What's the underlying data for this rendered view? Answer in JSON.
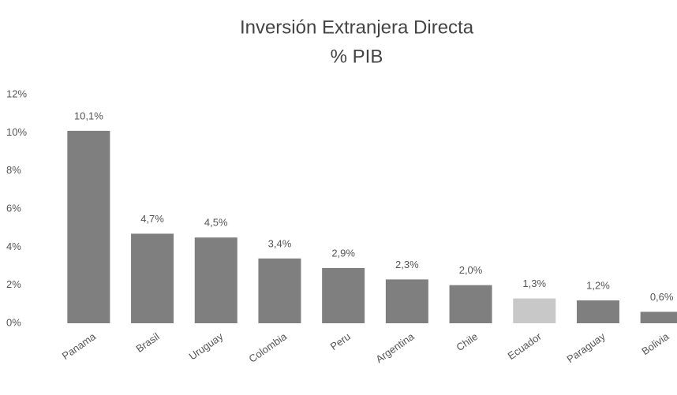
{
  "chart_data": {
    "type": "bar",
    "title": "Inversión Extranjera Directa",
    "subtitle": "% PIB",
    "categories": [
      "Panama",
      "Brasil",
      "Uruguay",
      "Colombia",
      "Peru",
      "Argentina",
      "Chile",
      "Ecuador",
      "Paraguay",
      "Bolivia"
    ],
    "values": [
      10.1,
      4.7,
      4.5,
      3.4,
      2.9,
      2.3,
      2.0,
      1.3,
      1.2,
      0.6
    ],
    "value_labels": [
      "10,1%",
      "4,7%",
      "4,5%",
      "3,4%",
      "2,9%",
      "2,3%",
      "2,0%",
      "1,3%",
      "1,2%",
      "0,6%"
    ],
    "colors": [
      "#7f7f7f",
      "#7f7f7f",
      "#7f7f7f",
      "#7f7f7f",
      "#7f7f7f",
      "#7f7f7f",
      "#7f7f7f",
      "#c8c8c8",
      "#7f7f7f",
      "#7f7f7f"
    ],
    "ylim": [
      0,
      12
    ],
    "yticks": [
      {
        "value": 0,
        "label": "0%"
      },
      {
        "value": 2,
        "label": "2%"
      },
      {
        "value": 4,
        "label": "4%"
      },
      {
        "value": 6,
        "label": "6%"
      },
      {
        "value": 8,
        "label": "8%"
      },
      {
        "value": 10,
        "label": "10%"
      },
      {
        "value": 12,
        "label": "12%"
      }
    ],
    "grid": false
  }
}
